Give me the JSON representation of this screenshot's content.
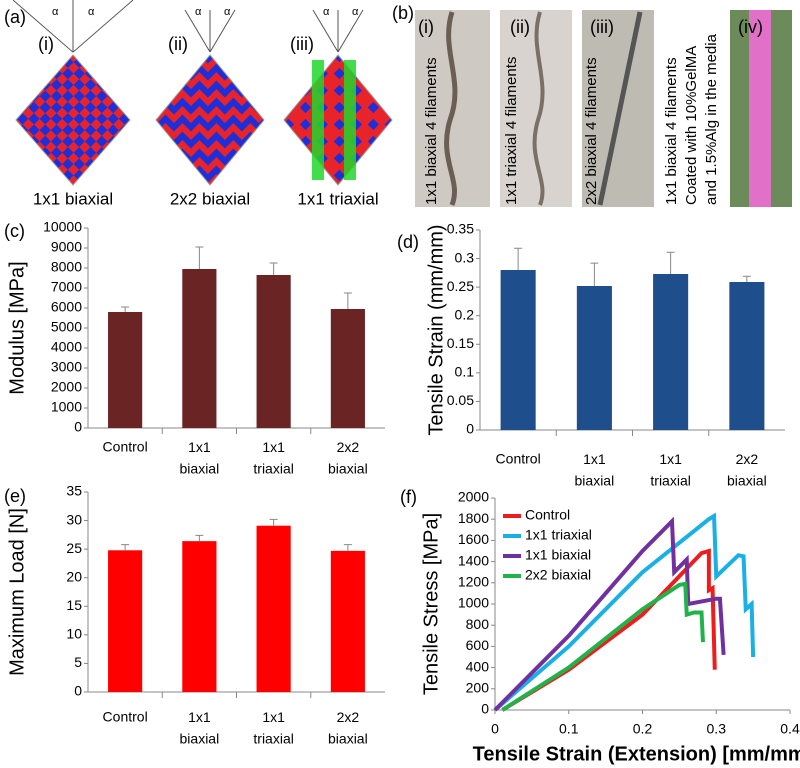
{
  "panel_a": {
    "label": "(a)",
    "angle": "α",
    "items": [
      {
        "numeral": "(i)",
        "caption": "1x1 biaxial"
      },
      {
        "numeral": "(ii)",
        "caption": "2x2 biaxial"
      },
      {
        "numeral": "(iii)",
        "caption": "1x1 triaxial"
      }
    ]
  },
  "panel_b": {
    "label": "(b)",
    "items": [
      {
        "numeral": "(i)",
        "caption": [
          "1x1 biaxial 4 filaments"
        ]
      },
      {
        "numeral": "(ii)",
        "caption": [
          "1x1 triaxial 4 filaments"
        ]
      },
      {
        "numeral": "(iii)",
        "caption": [
          "2x2 biaxial 4 filaments"
        ]
      },
      {
        "numeral": "(iv)",
        "caption": [
          "1x1 biaxial 4 filaments",
          "Coated with 10%GelMA",
          "and 1.5%Alg in the media"
        ]
      }
    ]
  },
  "chart_data": [
    {
      "type": "bar",
      "panel_label": "(c)",
      "y_label": "Modulus [MPa]",
      "categories": [
        "Control",
        "1x1 biaxial",
        "1x1 triaxial",
        "2x2 biaxial"
      ],
      "values": [
        5800,
        7950,
        7650,
        5950
      ],
      "errors": [
        250,
        1100,
        600,
        800
      ],
      "color": "#6b2424",
      "ylim": [
        0,
        10000
      ],
      "yticks": [
        0,
        1000,
        2000,
        3000,
        4000,
        5000,
        6000,
        7000,
        8000,
        9000,
        10000
      ]
    },
    {
      "type": "bar",
      "panel_label": "(d)",
      "y_label": "Tensile Strain (mm/mm)",
      "categories": [
        "Control",
        "1x1 biaxial",
        "1x1 triaxial",
        "2x2 biaxial"
      ],
      "values": [
        0.28,
        0.252,
        0.273,
        0.259
      ],
      "errors": [
        0.038,
        0.04,
        0.038,
        0.01
      ],
      "color": "#1f4e8c",
      "ylim": [
        0,
        0.35
      ],
      "yticks": [
        0,
        0.05,
        0.1,
        0.15,
        0.2,
        0.25,
        0.3,
        0.35
      ]
    },
    {
      "type": "bar",
      "panel_label": "(e)",
      "y_label": "Maximum Load [N]",
      "categories": [
        "Control",
        "1x1 biaxial",
        "1x1 triaxial",
        "2x2 biaxial"
      ],
      "values": [
        24.8,
        26.4,
        29.1,
        24.7
      ],
      "errors": [
        1,
        1,
        1.1,
        1.1
      ],
      "color": "#ff0000",
      "ylim": [
        0,
        35
      ],
      "yticks": [
        0,
        5,
        10,
        15,
        20,
        25,
        30,
        35
      ]
    },
    {
      "type": "line",
      "panel_label": "(f)",
      "x_label": "Tensile Strain (Extension) [mm/mm]",
      "y_label": "Tensile Stress [MPa]",
      "xlim": [
        0,
        0.4
      ],
      "xticks": [
        0,
        0.1,
        0.2,
        0.3,
        0.4
      ],
      "ylim": [
        0,
        2000
      ],
      "yticks": [
        0,
        200,
        400,
        600,
        800,
        1000,
        1200,
        1400,
        1600,
        1800,
        2000
      ],
      "legend": "upper left",
      "series": [
        {
          "name": "Control",
          "color": "#ee1c1c",
          "x": [
            0.01,
            0.1,
            0.2,
            0.28,
            0.29,
            0.29,
            0.295,
            0.298
          ],
          "y": [
            0,
            380,
            900,
            1480,
            1500,
            1130,
            1150,
            380
          ]
        },
        {
          "name": "1x1 triaxial",
          "color": "#1ab0e6",
          "x": [
            0,
            0.1,
            0.2,
            0.29,
            0.297,
            0.3,
            0.33,
            0.337,
            0.34,
            0.348,
            0.35
          ],
          "y": [
            0,
            600,
            1300,
            1800,
            1830,
            1260,
            1460,
            1450,
            950,
            1000,
            500
          ]
        },
        {
          "name": "1x1 biaxial",
          "color": "#7030a0",
          "x": [
            0,
            0.1,
            0.2,
            0.24,
            0.243,
            0.26,
            0.262,
            0.3,
            0.305,
            0.31
          ],
          "y": [
            0,
            700,
            1500,
            1780,
            1300,
            1420,
            1000,
            1050,
            1050,
            520
          ]
        },
        {
          "name": "2x2 biaxial",
          "color": "#21b24b",
          "x": [
            0.01,
            0.1,
            0.2,
            0.25,
            0.258,
            0.26,
            0.27,
            0.28,
            0.282
          ],
          "y": [
            0,
            400,
            950,
            1180,
            1190,
            900,
            920,
            920,
            640
          ]
        }
      ]
    }
  ]
}
